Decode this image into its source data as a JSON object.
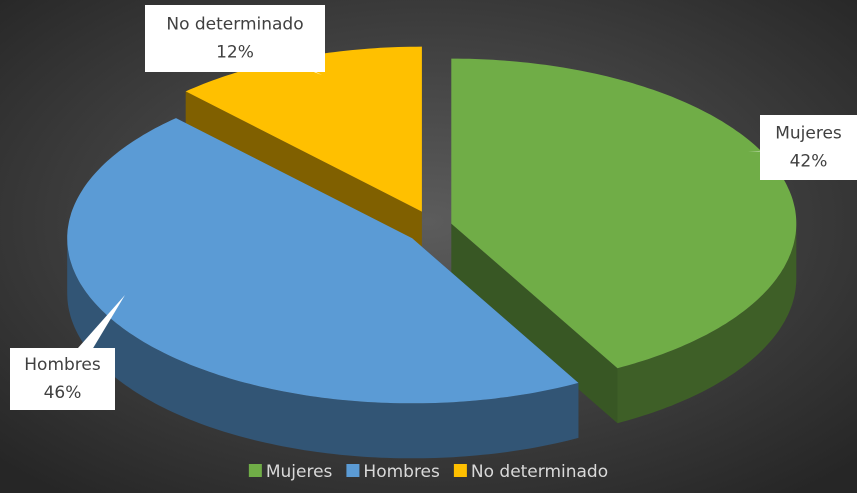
{
  "chart_data": {
    "type": "pie",
    "categories": [
      "Mujeres",
      "Hombres",
      "No determinado"
    ],
    "values": [
      42,
      46,
      12
    ],
    "value_labels": [
      "42%",
      "46%",
      "12%"
    ],
    "colors": [
      "#70ad47",
      "#5b9bd5",
      "#ffc000"
    ],
    "legend": "bottom"
  }
}
